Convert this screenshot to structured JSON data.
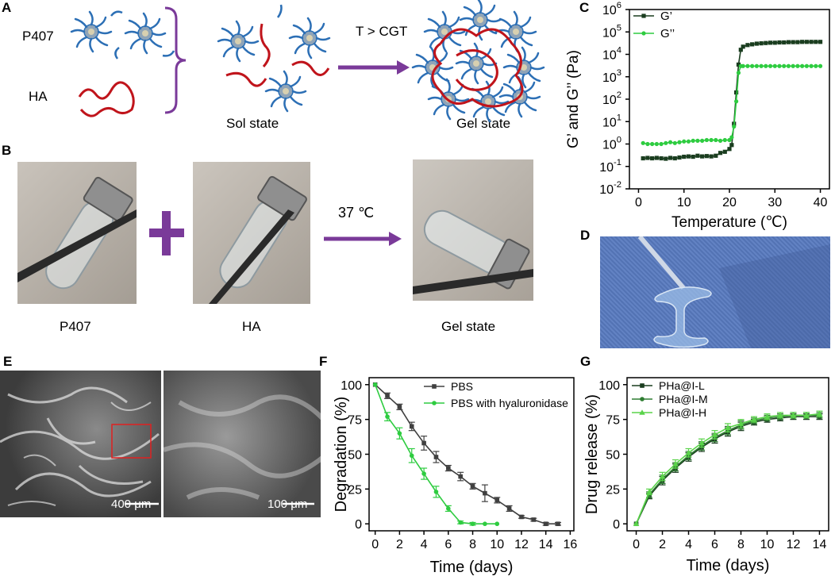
{
  "panels": {
    "A": {
      "label": "A",
      "p407_label": "P407",
      "ha_label": "HA",
      "sol_caption": "Sol state",
      "arrow_label": "T > CGT",
      "gel_caption": "Gel state"
    },
    "B": {
      "label": "B",
      "captions": [
        "P407",
        "HA",
        "Gel state"
      ],
      "arrow_label": "37 ℃"
    },
    "C": {
      "label": "C"
    },
    "D": {
      "label": "D"
    },
    "E": {
      "label": "E",
      "scale_left": "400 μm",
      "scale_right": "100 μm"
    },
    "F": {
      "label": "F"
    },
    "G": {
      "label": "G"
    }
  },
  "colors": {
    "polymer_blue": "#2c6fb5",
    "ha_red": "#c0141b",
    "arrow_purple": "#7a3a99",
    "series_dark": "#1a3d1f",
    "series_green": "#2ecc40",
    "fabric_blue": "#5b7fc4"
  },
  "chart_data": [
    {
      "id": "C",
      "type": "line",
      "xlabel": "Temperature (℃)",
      "ylabel": "G’ and G’’ (Pa)",
      "xlim": [
        -2,
        42
      ],
      "ylim_log10": [
        -2,
        6
      ],
      "yscale": "log",
      "xticks": [
        "0",
        "10",
        "20",
        "30",
        "40"
      ],
      "xtick_values": [
        0,
        10,
        20,
        30,
        40
      ],
      "ytick_exponents": [
        -2,
        -1,
        0,
        1,
        2,
        3,
        4,
        5,
        6
      ],
      "legend_placement": "top-left",
      "series": [
        {
          "name": "G’",
          "color": "#1a3d1f",
          "marker": "square",
          "x": [
            1,
            2,
            3,
            4,
            5,
            6,
            7,
            8,
            9,
            10,
            11,
            12,
            13,
            14,
            15,
            16,
            17,
            18,
            19,
            20,
            20.5,
            21,
            21.5,
            22,
            22.5,
            23,
            24,
            25,
            26,
            27,
            28,
            29,
            30,
            31,
            32,
            33,
            34,
            35,
            36,
            37,
            38,
            39,
            40
          ],
          "y": [
            0.23,
            0.24,
            0.23,
            0.24,
            0.23,
            0.22,
            0.24,
            0.23,
            0.25,
            0.27,
            0.28,
            0.27,
            0.3,
            0.28,
            0.29,
            0.28,
            0.3,
            0.4,
            0.45,
            0.6,
            0.9,
            8,
            200,
            3500,
            16000,
            22000,
            26000,
            28000,
            30000,
            31000,
            32000,
            33000,
            33000,
            34000,
            34000,
            35000,
            35000,
            35000,
            36000,
            36000,
            36000,
            36000,
            36000
          ]
        },
        {
          "name": "G’’",
          "color": "#2ecc40",
          "marker": "circle",
          "x": [
            1,
            2,
            3,
            4,
            5,
            6,
            7,
            8,
            9,
            10,
            11,
            12,
            13,
            14,
            15,
            16,
            17,
            18,
            19,
            20,
            20.5,
            21,
            21.5,
            22,
            22.5,
            23,
            24,
            25,
            26,
            27,
            28,
            29,
            30,
            31,
            32,
            33,
            34,
            35,
            36,
            37,
            38,
            39,
            40
          ],
          "y": [
            1.1,
            1.0,
            1.0,
            1.0,
            1.0,
            1.1,
            1.2,
            1.1,
            1.2,
            1.3,
            1.3,
            1.4,
            1.4,
            1.4,
            1.5,
            1.5,
            1.5,
            1.4,
            1.5,
            1.5,
            2,
            6,
            80,
            1500,
            3000,
            3000,
            3000,
            3000,
            3000,
            3000,
            3000,
            3000,
            3000,
            3000,
            3000,
            3000,
            3000,
            3000,
            3000,
            3000,
            3000,
            3000,
            3000
          ]
        }
      ]
    },
    {
      "id": "F",
      "type": "line",
      "xlabel": "Time (days)",
      "ylabel": "Degradation (%)",
      "xlim": [
        -0.5,
        16.3
      ],
      "ylim": [
        -5,
        105
      ],
      "xticks": [
        0,
        2,
        4,
        6,
        8,
        10,
        12,
        14,
        16
      ],
      "yticks": [
        0,
        25,
        50,
        75,
        100
      ],
      "legend_placement": "top-right",
      "series": [
        {
          "name": "PBS",
          "color": "#404040",
          "marker": "square",
          "x": [
            0,
            1,
            2,
            3,
            4,
            5,
            6,
            7,
            8,
            9,
            10,
            11,
            12,
            13,
            14,
            15
          ],
          "y": [
            100,
            92,
            84,
            70,
            58,
            48,
            40,
            34,
            27,
            22,
            17,
            11,
            5,
            3,
            0,
            0
          ],
          "err": [
            0,
            2,
            2,
            3,
            5,
            4,
            2,
            3,
            2,
            6,
            2,
            2,
            1,
            1,
            1,
            1
          ]
        },
        {
          "name": "PBS with hyaluronidase",
          "color": "#2ecc40",
          "marker": "circle",
          "x": [
            0,
            1,
            2,
            3,
            4,
            5,
            6,
            7,
            8,
            9,
            10
          ],
          "y": [
            100,
            77,
            65,
            49,
            36,
            23,
            11,
            1,
            0,
            0,
            0
          ],
          "err": [
            0,
            3,
            4,
            5,
            4,
            4,
            2,
            1,
            1,
            0,
            0
          ]
        }
      ]
    },
    {
      "id": "G",
      "type": "line",
      "xlabel": "Time (days)",
      "ylabel": "Drug release (%)",
      "xlim": [
        -0.7,
        14.7
      ],
      "ylim": [
        -5,
        105
      ],
      "xticks": [
        0,
        2,
        4,
        6,
        8,
        10,
        12,
        14
      ],
      "yticks": [
        0,
        25,
        50,
        75,
        100
      ],
      "legend_placement": "top-left",
      "series": [
        {
          "name": "PHa@I-L",
          "color": "#1a3d1f",
          "marker": "square",
          "x": [
            0,
            1,
            2,
            3,
            4,
            5,
            6,
            7,
            8,
            9,
            10,
            11,
            12,
            13,
            14
          ],
          "y": [
            0,
            20,
            31,
            40,
            48,
            55,
            61,
            66,
            70,
            73,
            75,
            76,
            77,
            77,
            77
          ],
          "err": [
            0,
            2,
            3,
            3,
            3,
            3,
            3,
            3,
            3,
            2,
            2,
            2,
            2,
            2,
            2
          ]
        },
        {
          "name": "PHa@I-M",
          "color": "#2f7d32",
          "marker": "circle",
          "x": [
            0,
            1,
            2,
            3,
            4,
            5,
            6,
            7,
            8,
            9,
            10,
            11,
            12,
            13,
            14
          ],
          "y": [
            0,
            21,
            32,
            41,
            49,
            56,
            62,
            67,
            71,
            74,
            76,
            77,
            78,
            78,
            78
          ],
          "err": [
            0,
            2,
            3,
            3,
            3,
            3,
            3,
            3,
            3,
            2,
            2,
            2,
            2,
            2,
            2
          ]
        },
        {
          "name": "PHa@I-H",
          "color": "#5ad34a",
          "marker": "triangle",
          "x": [
            0,
            1,
            2,
            3,
            4,
            5,
            6,
            7,
            8,
            9,
            10,
            11,
            12,
            13,
            14
          ],
          "y": [
            0,
            23,
            34,
            43,
            51,
            58,
            64,
            69,
            72,
            75,
            77,
            78,
            78,
            78,
            79
          ],
          "err": [
            0,
            2,
            3,
            3,
            3,
            3,
            3,
            3,
            3,
            2,
            2,
            2,
            2,
            2,
            2
          ]
        }
      ]
    }
  ]
}
